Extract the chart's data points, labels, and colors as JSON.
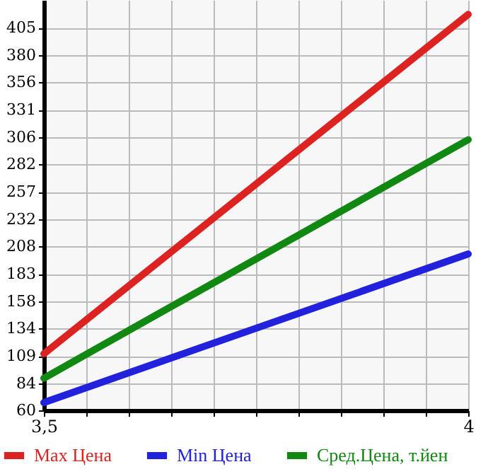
{
  "chart_data": {
    "type": "line",
    "x": [
      3.5,
      4
    ],
    "series": [
      {
        "name": "Max Цена",
        "color": "#dd2222",
        "values": [
          111,
          417
        ]
      },
      {
        "name": "Min Цена",
        "color": "#2222dd",
        "values": [
          67,
          201
        ]
      },
      {
        "name": "Сред.Цена, т.йен",
        "color": "#118811",
        "values": [
          89,
          304
        ]
      }
    ],
    "xlim": [
      3.5,
      4
    ],
    "xticks": [
      {
        "value": 3.5,
        "label": "3,5"
      },
      {
        "value": 3.55,
        "label": null
      },
      {
        "value": 3.6,
        "label": null
      },
      {
        "value": 3.65,
        "label": null
      },
      {
        "value": 3.7,
        "label": null
      },
      {
        "value": 3.75,
        "label": null
      },
      {
        "value": 3.8,
        "label": null
      },
      {
        "value": 3.85,
        "label": null
      },
      {
        "value": 3.9,
        "label": null
      },
      {
        "value": 3.95,
        "label": null
      },
      {
        "value": 4,
        "label": "4"
      }
    ],
    "ylim": [
      60,
      430
    ],
    "yticks": [
      60,
      84,
      109,
      134,
      158,
      183,
      208,
      232,
      257,
      282,
      306,
      331,
      356,
      380,
      405
    ],
    "grid": true,
    "legend": "bottom",
    "marker": "none",
    "line_style": "solid"
  }
}
